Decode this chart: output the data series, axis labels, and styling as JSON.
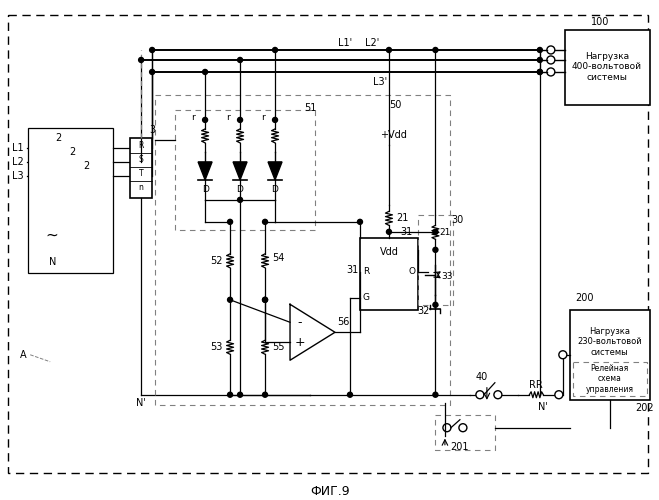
{
  "title": "ФИГ.9",
  "bg_color": "#ffffff",
  "label_100": "100",
  "label_200": "200",
  "label_202": "202",
  "label_1": "1",
  "label_2": "2",
  "label_3": "3",
  "label_N": "N",
  "label_Np": "N'",
  "label_L1": "L1",
  "label_L2": "L2",
  "label_L3": "L3",
  "label_L1p": "L1'",
  "label_L2p": "L2'",
  "label_L3p": "L3'",
  "label_A": "A",
  "label_50": "50",
  "label_51": "51",
  "label_52": "52",
  "label_53": "53",
  "label_54": "54",
  "label_55": "55",
  "label_56": "56",
  "label_21": "21",
  "label_30": "30",
  "label_31": "31",
  "label_32": "32",
  "label_33": "33",
  "label_40": "40",
  "label_Vdd": "Vdd",
  "label_pVdd": "+Vdd",
  "label_G": "G",
  "label_R_pin": "R",
  "label_O": "O",
  "label_RR": "RR",
  "label_201": "201",
  "label_D": "D",
  "label_r": "r",
  "box100_text": "Нагрузка\n400-вольтовой\nсистемы",
  "box200_text": "Нагрузка\n230-вольтовой\nсистемы",
  "box202_text": "Релейная\nсхема\nуправления"
}
